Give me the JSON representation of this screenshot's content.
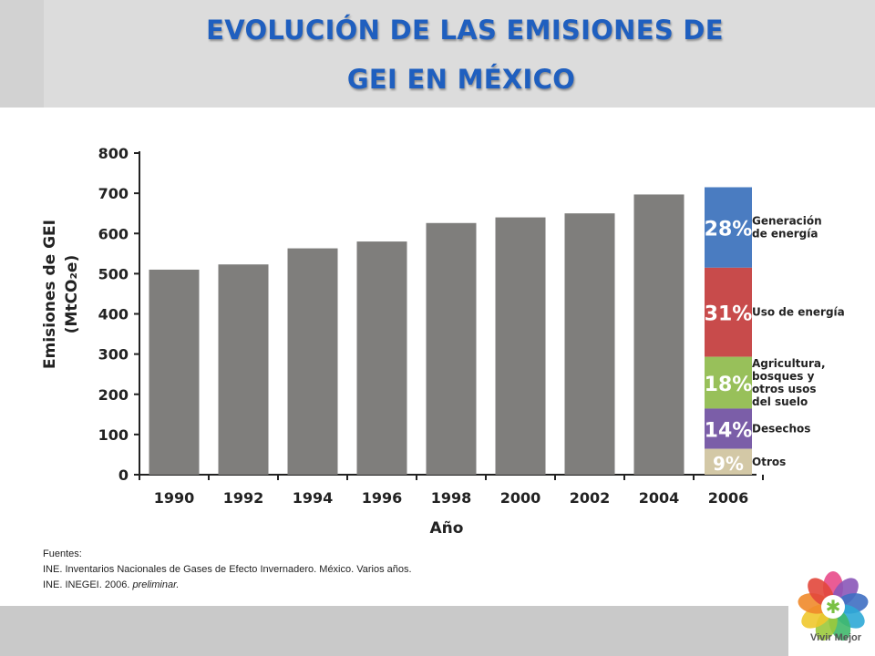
{
  "header": {
    "title_line1": "EVOLUCIÓN DE LAS EMISIONES DE",
    "title_line2": "GEI EN MÉXICO"
  },
  "chart_data": {
    "type": "bar",
    "categories": [
      "1990",
      "1992",
      "1994",
      "1996",
      "1998",
      "2000",
      "2002",
      "2004",
      "2006"
    ],
    "values": [
      510,
      523,
      563,
      580,
      626,
      640,
      650,
      697,
      715
    ],
    "ylim": [
      0,
      800
    ],
    "yticks": [
      0,
      100,
      200,
      300,
      400,
      500,
      600,
      700,
      800
    ],
    "ylabel_line1": "Emisiones de GEI",
    "ylabel_line2": "(MtCO₂e)",
    "xlabel": "Año",
    "grid": false,
    "bar_color": "#7f7e7c",
    "stacked_breakdown": {
      "category": "2006",
      "segments": [
        {
          "percent": "28%",
          "label": [
            "Generación",
            "de energía"
          ],
          "color": "#4a7cc1"
        },
        {
          "percent": "31%",
          "label": [
            "Uso de energía"
          ],
          "color": "#c84b4b"
        },
        {
          "percent": "18%",
          "label": [
            "Agricultura,",
            "bosques y",
            "otros usos",
            "del suelo"
          ],
          "color": "#98c05a"
        },
        {
          "percent": "14%",
          "label": [
            "Desechos"
          ],
          "color": "#7b5ea8"
        },
        {
          "percent": "9%",
          "label": [
            "Otros"
          ],
          "color": "#d3c8a6"
        }
      ],
      "shares": [
        28,
        31,
        18,
        14,
        9
      ]
    }
  },
  "sources": {
    "heading": "Fuentes:",
    "line1": "INE. Inventarios Nacionales de Gases de Efecto Invernadero. México. Varios años.",
    "line2_prefix": "INE. INEGEI. 2006. ",
    "line2_italic": "preliminar."
  },
  "logo": {
    "text": "Vivir Mejor",
    "petal_colors": [
      "#e84a8a",
      "#8a56b8",
      "#3f6fc2",
      "#2ea9d6",
      "#3fb86b",
      "#9bc93c",
      "#f0c82e",
      "#f08a2b",
      "#e2473b"
    ]
  }
}
